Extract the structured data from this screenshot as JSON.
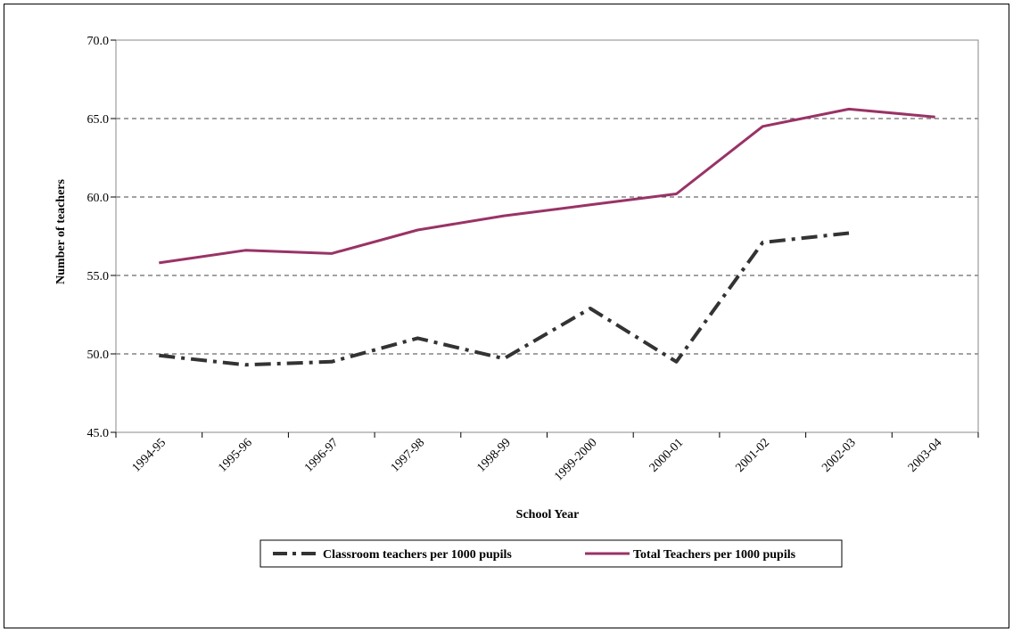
{
  "chart_data": {
    "type": "line",
    "title": "",
    "xlabel": "School Year",
    "ylabel": "Number of teachers",
    "ylim": [
      45.0,
      70.0
    ],
    "yticks": [
      "45.0",
      "50.0",
      "55.0",
      "60.0",
      "65.0",
      "70.0"
    ],
    "ytick_values": [
      45,
      50,
      55,
      60,
      65,
      70
    ],
    "grid": "horizontal dashed",
    "legend_position": "bottom",
    "categories": [
      "1994-95",
      "1995-96",
      "1996-97",
      "1997-98",
      "1998-99",
      "1999-2000",
      "2000-01",
      "2001-02",
      "2002-03",
      "2003-04"
    ],
    "series": [
      {
        "name": "Classroom teachers per 1000 pupils",
        "color": "#333333",
        "style": "dashed",
        "values": [
          49.9,
          49.3,
          49.5,
          51.0,
          49.7,
          52.9,
          49.5,
          57.1,
          57.7,
          null
        ]
      },
      {
        "name": "Total Teachers per 1000 pupils",
        "color": "#993366",
        "style": "solid",
        "values": [
          55.8,
          56.6,
          56.4,
          57.9,
          58.8,
          59.5,
          60.2,
          64.5,
          65.6,
          65.1
        ]
      }
    ]
  }
}
